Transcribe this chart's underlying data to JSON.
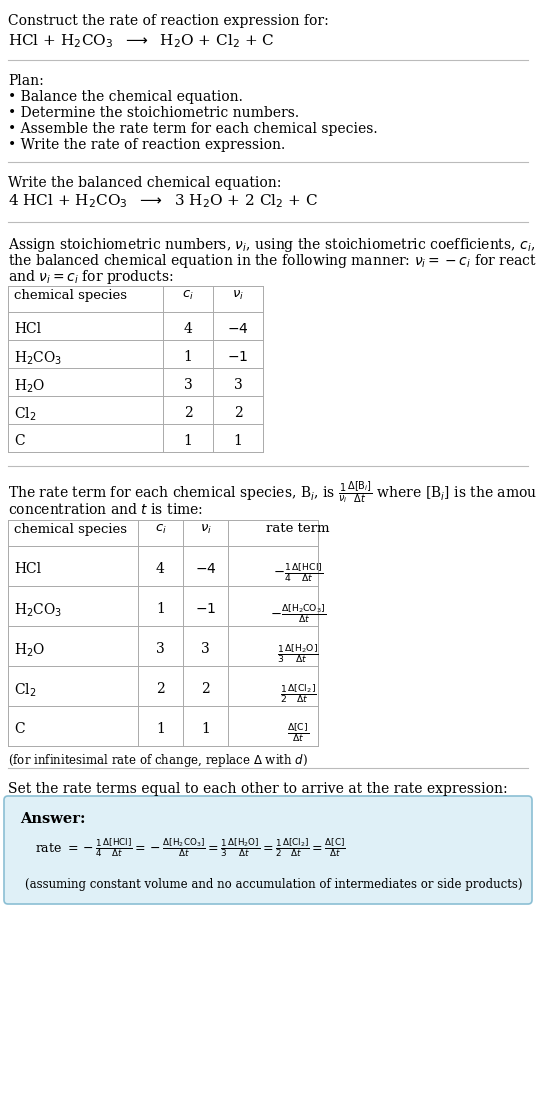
{
  "bg_color": "#ffffff",
  "text_color": "#000000",
  "answer_bg": "#dff0f7",
  "answer_border": "#8bbfd4",
  "title_line1": "Construct the rate of reaction expression for:",
  "plan_header": "Plan:",
  "plan_items": [
    "• Balance the chemical equation.",
    "• Determine the stoichiometric numbers.",
    "• Assemble the rate term for each chemical species.",
    "• Write the rate of reaction expression."
  ],
  "balanced_header": "Write the balanced chemical equation:",
  "stoich_header_line1": "Assign stoichiometric numbers, $\\nu_i$, using the stoichiometric coefficients, $c_i$, from",
  "stoich_header_line2": "the balanced chemical equation in the following manner: $\\nu_i = -c_i$ for reactants",
  "stoich_header_line3": "and $\\nu_i = c_i$ for products:",
  "table1_headers": [
    "chemical species",
    "$c_i$",
    "$\\nu_i$"
  ],
  "table1_rows": [
    [
      "HCl",
      "4",
      "$-4$"
    ],
    [
      "H$_2$CO$_3$",
      "1",
      "$-1$"
    ],
    [
      "H$_2$O",
      "3",
      "3"
    ],
    [
      "Cl$_2$",
      "2",
      "2"
    ],
    [
      "C",
      "1",
      "1"
    ]
  ],
  "table2_headers": [
    "chemical species",
    "$c_i$",
    "$\\nu_i$",
    "rate term"
  ],
  "table2_rows": [
    [
      "HCl",
      "4",
      "$-4$",
      "$-\\frac{1}{4}\\frac{\\Delta[\\mathrm{HCl}]}{\\Delta t}$"
    ],
    [
      "H$_2$CO$_3$",
      "1",
      "$-1$",
      "$-\\frac{\\Delta[\\mathrm{H_2CO_3}]}{\\Delta t}$"
    ],
    [
      "H$_2$O",
      "3",
      "3",
      "$\\frac{1}{3}\\frac{\\Delta[\\mathrm{H_2O}]}{\\Delta t}$"
    ],
    [
      "Cl$_2$",
      "2",
      "2",
      "$\\frac{1}{2}\\frac{\\Delta[\\mathrm{Cl_2}]}{\\Delta t}$"
    ],
    [
      "C",
      "1",
      "1",
      "$\\frac{\\Delta[\\mathrm{C}]}{\\Delta t}$"
    ]
  ],
  "infinitesimal_note": "(for infinitesimal rate of change, replace $\\Delta$ with $d$)",
  "set_equal_header": "Set the rate terms equal to each other to arrive at the rate expression:",
  "answer_label": "Answer:",
  "answer_note": "(assuming constant volume and no accumulation of intermediates or side products)"
}
